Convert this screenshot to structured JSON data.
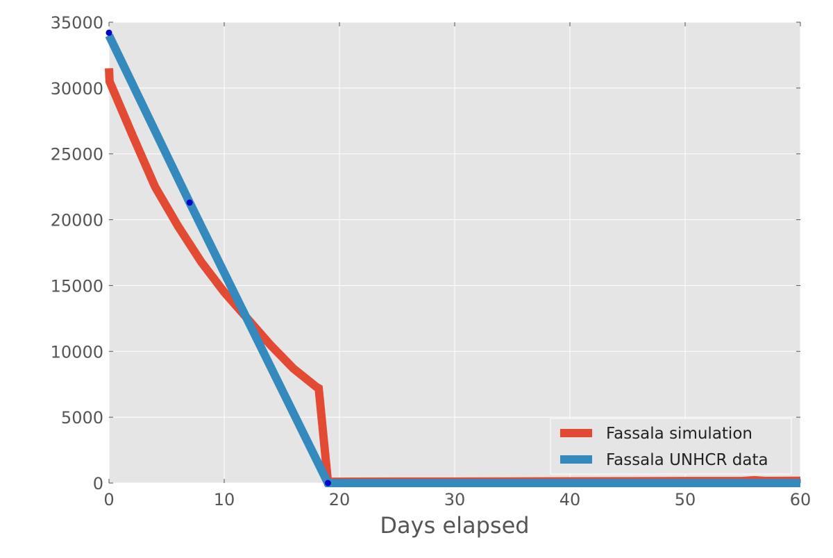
{
  "chart_data": {
    "type": "line",
    "title": "",
    "xlabel": "Days elapsed",
    "ylabel": "",
    "xlim": [
      0,
      60
    ],
    "ylim": [
      0,
      35000
    ],
    "x_ticks": [
      0,
      10,
      20,
      30,
      40,
      50,
      60
    ],
    "y_ticks": [
      0,
      5000,
      10000,
      15000,
      20000,
      25000,
      30000,
      35000
    ],
    "grid": true,
    "background": "#E5E5E5",
    "legend_position": "lower-right",
    "series": [
      {
        "name": "Fassala simulation",
        "color": "#E24A33",
        "points": [
          [
            0,
            31500
          ],
          [
            0.05,
            30500
          ],
          [
            2,
            26500
          ],
          [
            4,
            22500
          ],
          [
            6,
            19500
          ],
          [
            8,
            16800
          ],
          [
            10,
            14500
          ],
          [
            12,
            12500
          ],
          [
            14,
            10500
          ],
          [
            16,
            8700
          ],
          [
            18,
            7300
          ],
          [
            18.2,
            7200
          ],
          [
            19,
            100
          ],
          [
            20,
            100
          ],
          [
            25,
            110
          ],
          [
            30,
            110
          ],
          [
            35,
            120
          ],
          [
            40,
            130
          ],
          [
            45,
            140
          ],
          [
            50,
            150
          ],
          [
            55,
            160
          ],
          [
            56,
            220
          ],
          [
            57,
            160
          ],
          [
            60,
            170
          ]
        ]
      },
      {
        "name": "Fassala UNHCR data",
        "color": "#348ABD",
        "points": [
          [
            0,
            34000
          ],
          [
            7,
            21300
          ],
          [
            19,
            0
          ],
          [
            20,
            0
          ],
          [
            60,
            0
          ]
        ]
      }
    ],
    "observations": {
      "color": "#0000CC",
      "points": [
        [
          0,
          34200
        ],
        [
          7,
          21300
        ],
        [
          19,
          0
        ]
      ]
    }
  }
}
